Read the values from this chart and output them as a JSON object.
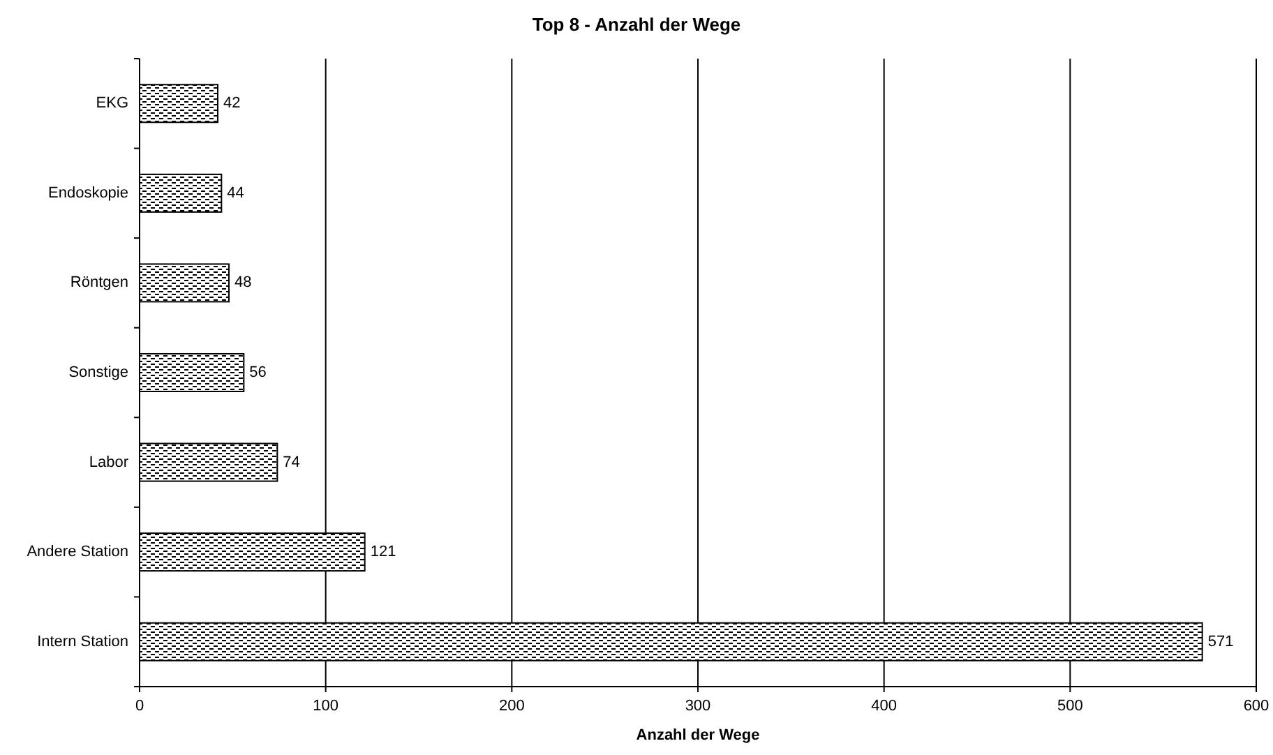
{
  "chart_data": {
    "type": "bar",
    "title": "Top 8 - Anzahl der Wege",
    "xlabel": "Anzahl der Wege",
    "orientation": "horizontal",
    "categories": [
      "EKG",
      "Endoskopie",
      "Röntgen",
      "Sonstige",
      "Labor",
      "Andere Station",
      "Intern Station"
    ],
    "values": [
      42,
      44,
      48,
      56,
      74,
      121,
      571
    ],
    "color": "#000000",
    "xlim": [
      0,
      600
    ],
    "xticks": [
      0,
      100,
      200,
      300,
      400,
      500,
      600
    ],
    "grid": "x",
    "data_labels": true
  }
}
